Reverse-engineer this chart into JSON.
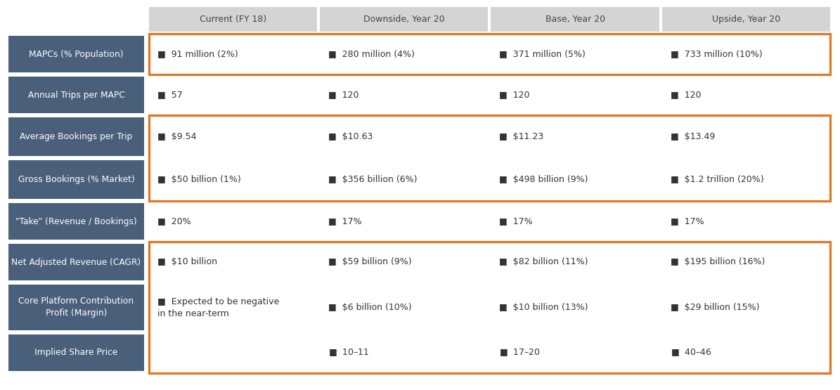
{
  "columns": [
    "Current (FY 18)",
    "Downside, Year 20",
    "Base, Year 20",
    "Upside, Year 20"
  ],
  "rows": [
    {
      "label": "MAPCs (% Population)",
      "values": [
        "91 million (2%)",
        "280 million (4%)",
        "371 million (5%)",
        "733 million (10%)"
      ]
    },
    {
      "label": "Annual Trips per MAPC",
      "values": [
        "57",
        "120",
        "120",
        "120"
      ]
    },
    {
      "label": "Average Bookings per Trip",
      "values": [
        "$9.54",
        "$10.63",
        "$11.23",
        "$13.49"
      ]
    },
    {
      "label": "Gross Bookings (% Market)",
      "values": [
        "$50 billion (1%)",
        "$356 billion (6%)",
        "$498 billion (9%)",
        "$1.2 trillion (20%)"
      ]
    },
    {
      "label": "\"Take\" (Revenue / Bookings)",
      "values": [
        "20%",
        "17%",
        "17%",
        "17%"
      ]
    },
    {
      "label": "Net Adjusted Revenue (CAGR)",
      "values": [
        "$10 billion",
        "$59 billion (9%)",
        "$82 billion (11%)",
        "$195 billion (16%)"
      ]
    },
    {
      "label": "Core Platform Contribution\nProfit (Margin)",
      "values": [
        "Expected to be negative\nin the near-term",
        "$6 billion (10%)",
        "$10 billion (13%)",
        "$29 billion (15%)"
      ]
    },
    {
      "label": "Implied Share Price",
      "values": [
        "",
        "$10 – $11",
        "$17 – $20",
        "$40 – $46"
      ]
    }
  ],
  "orange_boxes": [
    {
      "rows": [
        0
      ]
    },
    {
      "rows": [
        2,
        3
      ]
    },
    {
      "rows": [
        5,
        6,
        7
      ]
    }
  ],
  "header_bg": "#d4d4d4",
  "label_bg": "#4a5f7a",
  "label_text_color": "#ffffff",
  "header_text_color": "#444444",
  "cell_text_color": "#333333",
  "orange_color": "#e07820",
  "bg_color": "#ffffff",
  "bullet": "■"
}
